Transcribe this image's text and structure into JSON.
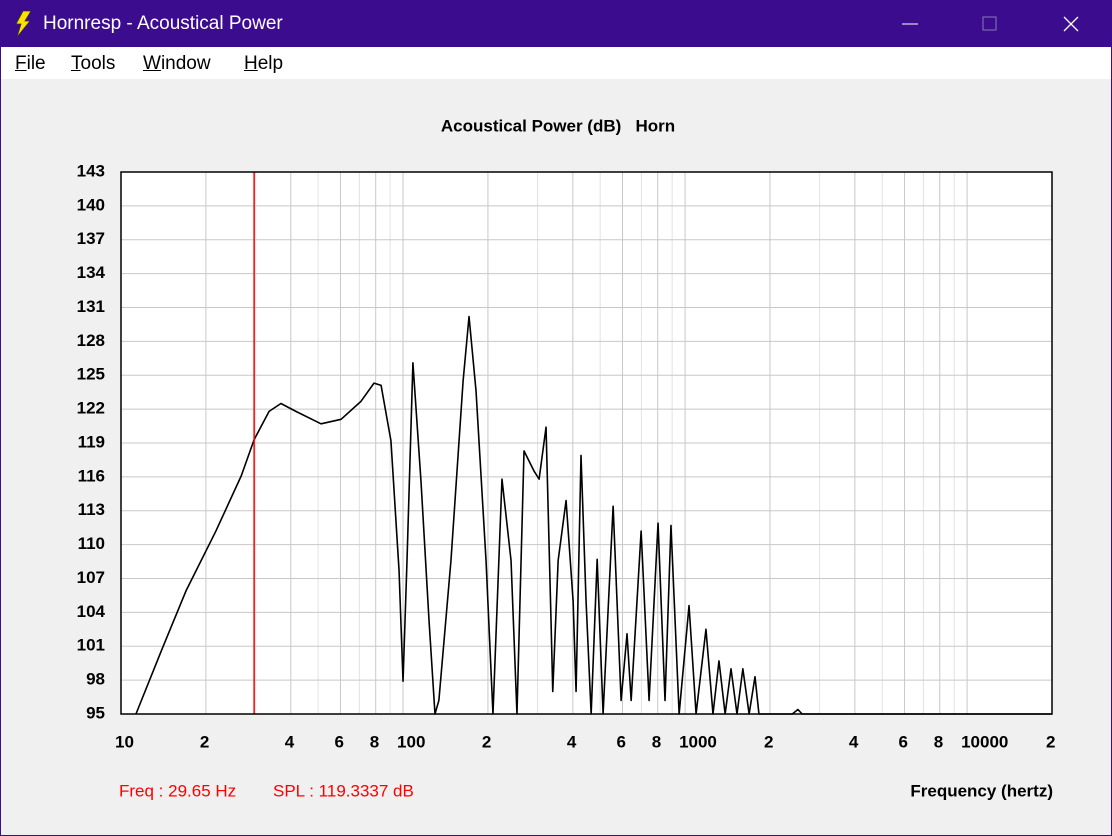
{
  "window": {
    "title": "Hornresp - Acoustical Power"
  },
  "menu": [
    "File",
    "Tools",
    "Window",
    "Help"
  ],
  "chart_data": {
    "type": "line",
    "title": "Acoustical Power (dB)   Horn",
    "x_label": "Frequency (hertz)",
    "xscale": "log",
    "grid": true,
    "color": "#000000",
    "x": [
      11.3,
      13.9,
      17,
      21.7,
      26.7,
      29.65,
      33.5,
      36.9,
      41.7,
      51.2,
      60.3,
      71,
      78.9,
      83.6,
      90.6,
      96.8,
      100,
      103.3,
      108.4,
      115.8,
      123.7,
      129.8,
      134,
      147.9,
      163.3,
      171.4,
      181.5,
      196.9,
      208.4,
      224.3,
      241.5,
      253.5,
      268.5,
      291.6,
      303.7,
      321.4,
      334.8,
      339.5,
      354.8,
      378.5,
      400.9,
      410.7,
      427.6,
      445.6,
      464.5,
      487.9,
      512.1,
      555.8,
      593.2,
      622.6,
      643.9,
      698.6,
      745.4,
      802,
      849,
      891.3,
      952.6,
      1033,
      1094,
      1186,
      1256,
      1319,
      1387,
      1455,
      1528,
      1603,
      1687,
      1770,
      1828,
      2400,
      2513,
      2600,
      20000
    ],
    "values": [
      95,
      100.6,
      105.9,
      111.2,
      116.1,
      119.3,
      121.8,
      122.5,
      121.8,
      120.7,
      121.1,
      122.7,
      124.3,
      124.1,
      119.2,
      107.7,
      97.9,
      108.6,
      126.1,
      115.6,
      103.2,
      95,
      96.2,
      108.6,
      124.5,
      130.2,
      123.6,
      108.6,
      95,
      115.8,
      108.6,
      95,
      118.3,
      116.5,
      115.8,
      120.4,
      103.2,
      97,
      108.6,
      113.9,
      105,
      97,
      117.9,
      105,
      95,
      108.7,
      95,
      113.4,
      96.2,
      102.1,
      96.2,
      111.2,
      96.2,
      111.9,
      96.2,
      111.7,
      95,
      104.6,
      95,
      102.5,
      95,
      99.7,
      95,
      99,
      95,
      99,
      95,
      98.3,
      95,
      95,
      95.4,
      95,
      95
    ],
    "xlim": [
      10,
      20000
    ],
    "ylim": [
      95,
      143
    ],
    "xticks": [
      10,
      {
        "value": 20,
        "label": "2"
      },
      {
        "value": 40,
        "label": "4"
      },
      {
        "value": 60,
        "label": "6"
      },
      {
        "value": 80,
        "label": "8"
      },
      100,
      {
        "value": 200,
        "label": "2"
      },
      {
        "value": 400,
        "label": "4"
      },
      {
        "value": 600,
        "label": "6"
      },
      {
        "value": 800,
        "label": "8"
      },
      1000,
      {
        "value": 2000,
        "label": "2"
      },
      {
        "value": 4000,
        "label": "4"
      },
      {
        "value": 6000,
        "label": "6"
      },
      {
        "value": 8000,
        "label": "8"
      },
      10000,
      {
        "value": 20000,
        "label": "2"
      }
    ],
    "xminorticks": [
      30,
      50,
      70,
      90,
      300,
      500,
      700,
      900,
      3000,
      5000,
      7000,
      9000
    ],
    "yticks": [
      95,
      98,
      101,
      104,
      107,
      110,
      113,
      116,
      119,
      122,
      125,
      128,
      131,
      134,
      137,
      140,
      143
    ],
    "cursor": {
      "x": 29.65,
      "color": "#ff0000"
    },
    "annotations": [
      "Freq : 29.65 Hz",
      "SPL : 119.3337 dB"
    ]
  }
}
